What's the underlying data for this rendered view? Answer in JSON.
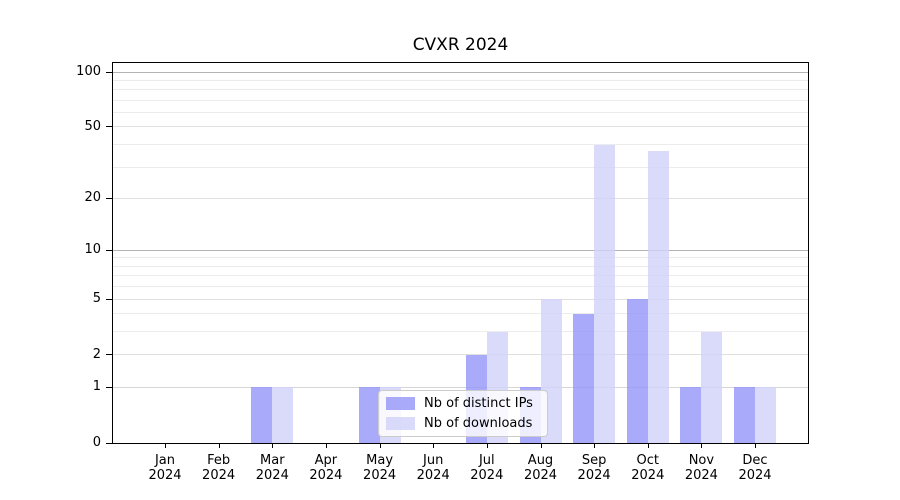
{
  "title": "CVXR 2024",
  "legend": {
    "items": [
      {
        "label": "Nb of distinct IPs",
        "color": "rgba(149,149,249,0.8)"
      },
      {
        "label": "Nb of downloads",
        "color": "rgba(209,209,249,0.8)"
      }
    ]
  },
  "chart_data": {
    "type": "bar",
    "title": "CVXR 2024",
    "xlabel": "",
    "ylabel": "",
    "categories": [
      "Jan 2024",
      "Feb 2024",
      "Mar 2024",
      "Apr 2024",
      "May 2024",
      "Jun 2024",
      "Jul 2024",
      "Aug 2024",
      "Sep 2024",
      "Oct 2024",
      "Nov 2024",
      "Dec 2024"
    ],
    "series": [
      {
        "name": "Nb of distinct IPs",
        "color": "rgba(149,149,249,0.8)",
        "values": [
          0,
          0,
          1,
          0,
          1,
          0,
          2,
          1,
          4,
          5,
          1,
          1
        ]
      },
      {
        "name": "Nb of downloads",
        "color": "rgba(209,209,249,0.8)",
        "values": [
          0,
          0,
          1,
          0,
          1,
          0,
          3,
          5,
          40,
          37,
          3,
          1
        ]
      }
    ],
    "yscale": "log1p",
    "ylim": [
      0,
      112
    ],
    "yticks": [
      0,
      1,
      2,
      5,
      10,
      20,
      50,
      100
    ],
    "minor_gridlines": [
      3,
      4,
      6,
      7,
      8,
      9,
      30,
      40,
      60,
      70,
      80,
      90
    ],
    "grid": true,
    "legend_position": "lower-center-inside"
  },
  "colors": {
    "bar_distinct_ips": "rgba(149,149,249,0.8)",
    "bar_downloads": "rgba(209,209,249,0.8)",
    "grid_minor": "#ececec",
    "grid_major": "#e0e0e0",
    "grid_decade": "#b3b3b3",
    "grid_unit": "#d6d6d6",
    "spine": "#000000",
    "legend_border": "#cccccc",
    "background": "#ffffff"
  }
}
